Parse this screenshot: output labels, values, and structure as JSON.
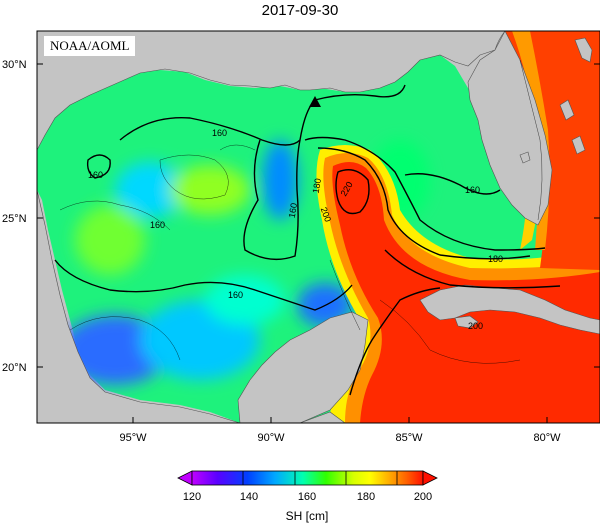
{
  "title": "2017-09-30",
  "badge": "NOAA/AOML",
  "map": {
    "lat_ticks": [
      {
        "label": "30°N",
        "value": 30
      },
      {
        "label": "25°N",
        "value": 25
      },
      {
        "label": "20°N",
        "value": 20
      }
    ],
    "lon_ticks": [
      {
        "label": "95°W",
        "value": -95
      },
      {
        "label": "90°W",
        "value": -90
      },
      {
        "label": "85°W",
        "value": -85
      },
      {
        "label": "80°W",
        "value": -80
      }
    ],
    "contour_labels": [
      "160",
      "160",
      "160",
      "160",
      "160",
      "160",
      "180",
      "180",
      "200",
      "220",
      "200"
    ],
    "marker": "triangle",
    "colors": {
      "land": "#c4c4c4",
      "frame": "#000000"
    }
  },
  "colorbar": {
    "label": "SH [cm]",
    "ticks": [
      "120",
      "140",
      "160",
      "180",
      "200"
    ],
    "range": [
      115,
      205
    ],
    "colors": [
      "#b000ff",
      "#3a00ff",
      "#0050ff",
      "#00b0ff",
      "#00ffa0",
      "#40ff00",
      "#c8ff00",
      "#ffff00",
      "#ffc000",
      "#ff7000",
      "#ff1500"
    ]
  }
}
